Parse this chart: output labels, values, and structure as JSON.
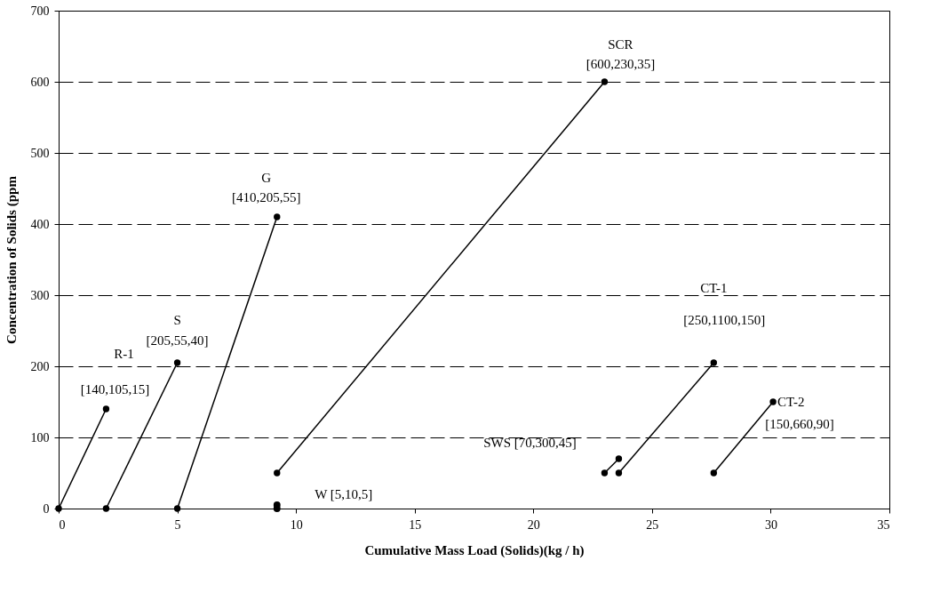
{
  "chart_data": {
    "type": "line",
    "xlabel": "Cumulative Mass Load (Solids)(kg / h)",
    "ylabel": "Concentration of Solids (ppm",
    "series": [
      {
        "color": "#000000",
        "x": [
          0,
          2
        ],
        "values": [
          0,
          140
        ]
      },
      {
        "color": "#000000",
        "x": [
          2,
          5
        ],
        "values": [
          0,
          205
        ]
      },
      {
        "color": "#000000",
        "x": [
          5,
          9.2
        ],
        "values": [
          0,
          410
        ]
      },
      {
        "type": "scatter",
        "color": "#000000",
        "x": [
          9.2,
          9.2
        ],
        "values": [
          0,
          5
        ]
      },
      {
        "color": "#000000",
        "x": [
          9.2,
          23
        ],
        "values": [
          50,
          600
        ]
      },
      {
        "color": "#000000",
        "x": [
          23,
          23.6
        ],
        "values": [
          50,
          70
        ]
      },
      {
        "color": "#000000",
        "x": [
          23.6,
          27.6
        ],
        "values": [
          50,
          205
        ]
      },
      {
        "color": "#000000",
        "x": [
          27.6,
          30.1
        ],
        "values": [
          50,
          150
        ]
      }
    ],
    "annotations": [
      "SCR",
      "[600,230,35]",
      "G",
      "[410,205,55]",
      "S",
      "[205,55,40]",
      "R-1",
      "[140,105,15]",
      "W [5,10,5]",
      "SWS [70,300,45]",
      "CT-1",
      "[250,1100,150]",
      "CT-2",
      "[150,660,90]"
    ],
    "xlim": [
      0,
      35
    ],
    "xticks": [
      0,
      5,
      10,
      15,
      20,
      25,
      30,
      35
    ],
    "ylim": [
      0,
      700
    ],
    "yticks": [
      0,
      100,
      200,
      300,
      400,
      500,
      600,
      700
    ],
    "grid": "y",
    "marker": "circle",
    "line_style": "solid"
  }
}
